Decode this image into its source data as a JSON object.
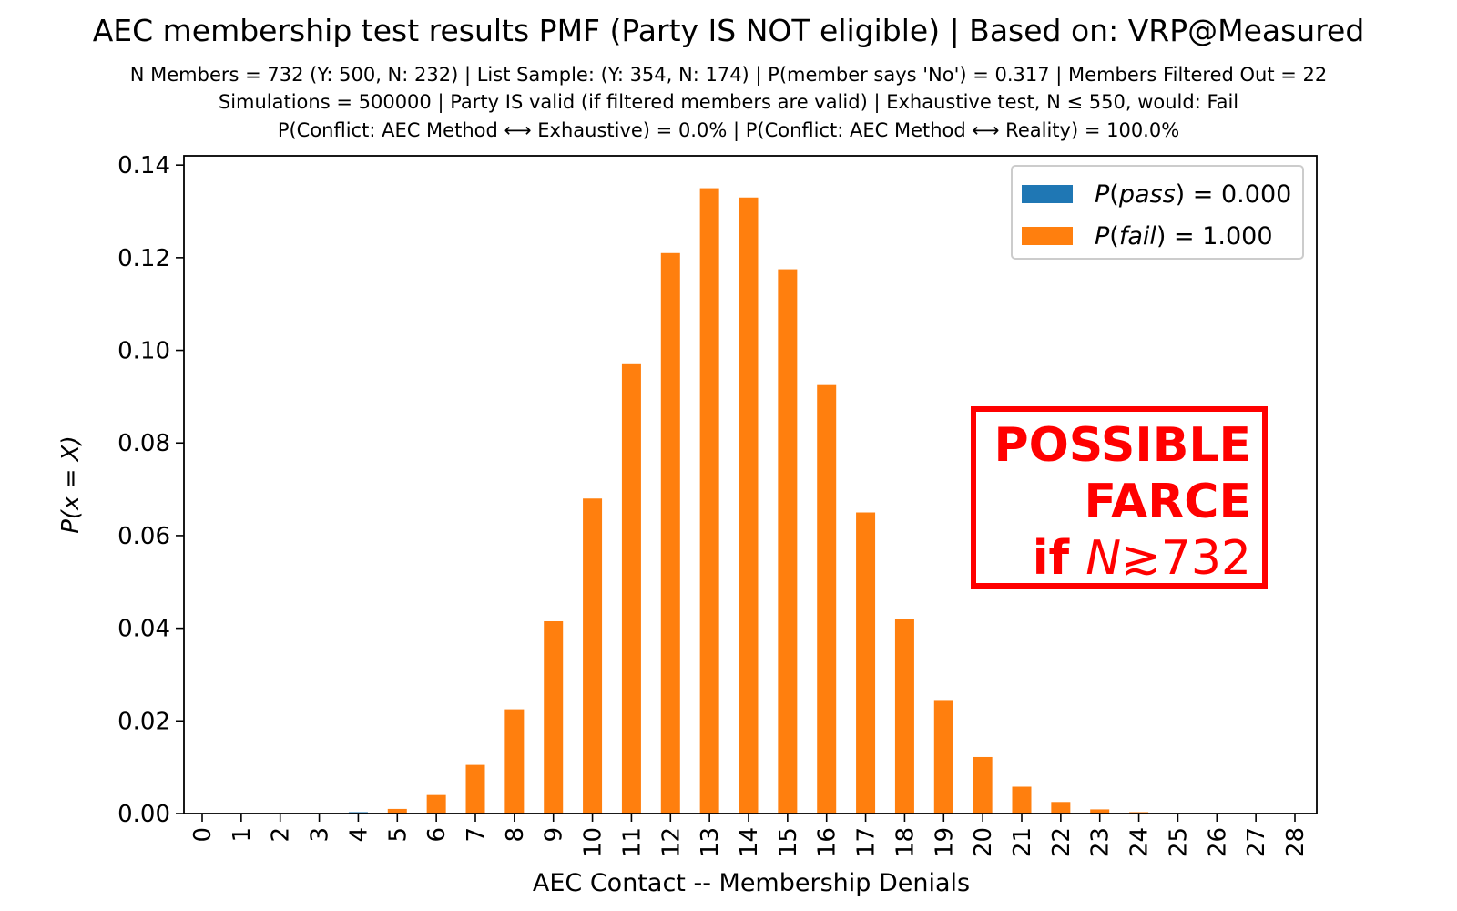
{
  "chart_data": {
    "type": "bar",
    "title": "AEC membership test results PMF (Party IS NOT eligible) | Based on: VRP@Measured",
    "subtitle_lines": [
      "N Members = 732 (Y: 500, N: 232) | List Sample: (Y: 354, N: 174) | P(member says 'No') = 0.317 | Members Filtered Out = 22",
      "Simulations = 500000 | Party IS valid (if filtered members are valid) | Exhaustive test, N ≤ 550, would: Fail",
      "P(Conflict: AEC Method ⟷ Exhaustive) = 0.0% | P(Conflict: AEC Method ⟷ Reality) = 100.0%"
    ],
    "xlabel": "AEC Contact -- Membership Denials",
    "ylabel": "P(x = X)",
    "ylim": [
      0,
      0.142
    ],
    "yticks": [
      "0.00",
      "0.02",
      "0.04",
      "0.06",
      "0.08",
      "0.10",
      "0.12",
      "0.14"
    ],
    "categories": [
      "0",
      "1",
      "2",
      "3",
      "4",
      "5",
      "6",
      "7",
      "8",
      "9",
      "10",
      "11",
      "12",
      "13",
      "14",
      "15",
      "16",
      "17",
      "18",
      "19",
      "20",
      "21",
      "22",
      "23",
      "24",
      "25",
      "26",
      "27",
      "28"
    ],
    "series": [
      {
        "name": "P(pass) = 0.000",
        "color": "#1f77b4",
        "values": [
          0,
          0,
          0,
          0,
          0.0003,
          0,
          0,
          0,
          0,
          0,
          0,
          0,
          0,
          0,
          0,
          0,
          0,
          0,
          0,
          0,
          0,
          0,
          0,
          0,
          0,
          0,
          0,
          0,
          0
        ]
      },
      {
        "name": "P(fail) = 1.000",
        "color": "#ff7f0e",
        "values": [
          0,
          0,
          0,
          0.0001,
          0,
          0.001,
          0.004,
          0.0105,
          0.0225,
          0.0415,
          0.068,
          0.097,
          0.121,
          0.135,
          0.133,
          0.1175,
          0.0925,
          0.065,
          0.042,
          0.0245,
          0.0122,
          0.0058,
          0.0025,
          0.0009,
          0.0003,
          0.0001,
          0,
          0,
          0
        ]
      }
    ],
    "legend": {
      "position": "top-right",
      "pass_func": "P",
      "pass_var": "pass",
      "pass_val": " = 0.000",
      "fail_func": "P",
      "fail_var": "fail",
      "fail_val": " = 1.000"
    },
    "annotation": {
      "line1": "POSSIBLE",
      "line2": "FARCE",
      "line3_if": "if ",
      "line3_n": "N",
      "line3_rest": "≳732",
      "color": "#ff0000"
    }
  }
}
